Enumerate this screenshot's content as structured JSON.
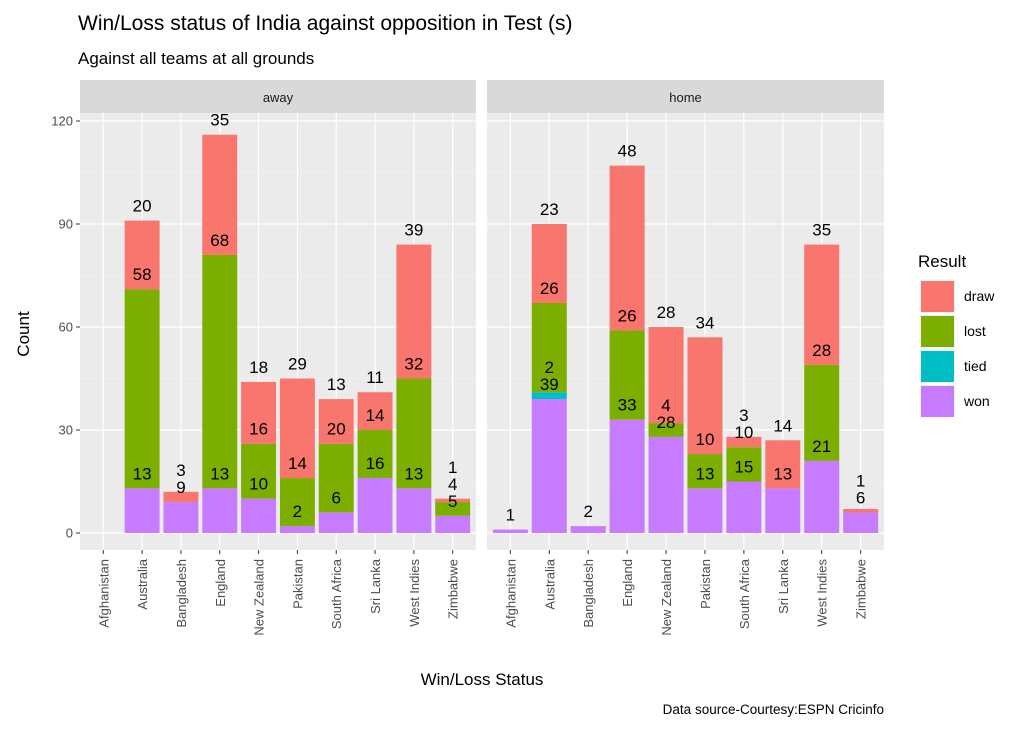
{
  "chart_data": {
    "type": "bar",
    "stacked": true,
    "title": "Win/Loss status of India against opposition in Test (s)",
    "subtitle": "Against all  teams at all grounds",
    "xlabel": "Win/Loss Status",
    "ylabel": "Count",
    "caption": "Data source-Courtesy:ESPN Cricinfo",
    "ylim": [
      0,
      125
    ],
    "yticks": [
      "0",
      "30",
      "60",
      "90",
      "120"
    ],
    "grid": true,
    "legend": {
      "title": "Result",
      "position": "right",
      "entries": [
        "draw",
        "lost",
        "tied",
        "won"
      ]
    },
    "colors": {
      "draw": "#F8766D",
      "lost": "#7CAE00",
      "tied": "#00BFC4",
      "won": "#C77CFF"
    },
    "categories": [
      "Afghanistan",
      "Australia",
      "Bangladesh",
      "England",
      "New Zealand",
      "Pakistan",
      "South Africa",
      "Sri Lanka",
      "West Indies",
      "Zimbabwe"
    ],
    "panels": [
      {
        "name": "away",
        "series": [
          {
            "name": "won",
            "values": [
              0,
              13,
              9,
              13,
              10,
              2,
              6,
              16,
              13,
              5
            ]
          },
          {
            "name": "tied",
            "values": [
              0,
              0,
              0,
              0,
              0,
              0,
              0,
              0,
              0,
              0
            ]
          },
          {
            "name": "lost",
            "values": [
              0,
              58,
              0,
              68,
              16,
              14,
              20,
              14,
              32,
              4
            ]
          },
          {
            "name": "draw",
            "values": [
              0,
              20,
              3,
              35,
              18,
              29,
              13,
              11,
              39,
              1
            ]
          }
        ]
      },
      {
        "name": "home",
        "series": [
          {
            "name": "won",
            "values": [
              1,
              39,
              2,
              33,
              28,
              13,
              15,
              13,
              21,
              6
            ]
          },
          {
            "name": "tied",
            "values": [
              0,
              2,
              0,
              0,
              0,
              0,
              0,
              0,
              0,
              0
            ]
          },
          {
            "name": "lost",
            "values": [
              0,
              26,
              0,
              26,
              4,
              10,
              10,
              0,
              28,
              0
            ]
          },
          {
            "name": "draw",
            "values": [
              0,
              23,
              0,
              48,
              28,
              34,
              3,
              14,
              35,
              1
            ]
          }
        ]
      }
    ]
  }
}
